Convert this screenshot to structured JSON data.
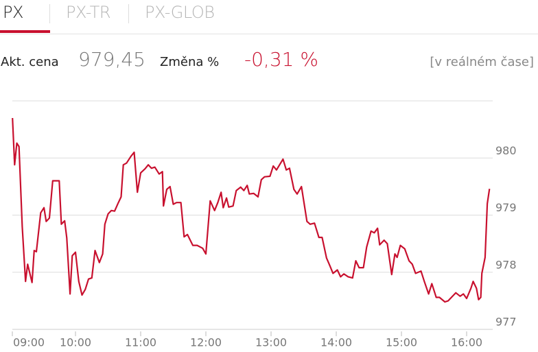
{
  "tabs": [
    "PX",
    "PX-TR",
    "PX-GLOB"
  ],
  "info": {
    "price_label": "Akt. cena",
    "price": "979,45",
    "change_label": "Změna %",
    "change": "-0,31 %",
    "realtime": "[v reálném čase]"
  },
  "chart_data": {
    "type": "line",
    "x": [
      "09:02",
      "09:04",
      "09:06",
      "09:08",
      "09:11",
      "09:14",
      "09:16",
      "09:20",
      "09:22",
      "09:24",
      "09:28",
      "09:31",
      "09:33",
      "09:36",
      "09:39",
      "09:45",
      "09:47",
      "09:50",
      "09:52",
      "09:55",
      "09:57",
      "10:00",
      "10:03",
      "10:06",
      "10:09",
      "10:12",
      "10:15",
      "10:18",
      "10:22",
      "10:25",
      "10:27",
      "10:30",
      "10:33",
      "10:36",
      "10:39",
      "10:42",
      "10:44",
      "10:47",
      "10:51",
      "10:54",
      "10:57",
      "11:00",
      "11:04",
      "11:07",
      "11:10",
      "11:13",
      "11:17",
      "11:20",
      "11:21",
      "11:24",
      "11:27",
      "11:30",
      "11:33",
      "11:37",
      "11:40",
      "11:43",
      "11:48",
      "11:52",
      "11:57",
      "12:00",
      "12:04",
      "12:08",
      "12:11",
      "12:14",
      "12:16",
      "12:19",
      "12:21",
      "12:25",
      "12:28",
      "12:32",
      "12:35",
      "12:38",
      "12:40",
      "12:44",
      "12:48",
      "12:51",
      "12:54",
      "12:59",
      "13:02",
      "13:05",
      "13:11",
      "13:14",
      "13:17",
      "13:21",
      "13:24",
      "13:28",
      "13:33",
      "13:36",
      "13:40",
      "13:44",
      "13:47",
      "13:51",
      "13:54",
      "13:57",
      "14:01",
      "14:04",
      "14:07",
      "14:11",
      "14:15",
      "14:18",
      "14:21",
      "14:25",
      "14:28",
      "14:32",
      "14:35",
      "14:38",
      "14:40",
      "14:44",
      "14:47",
      "14:51",
      "14:54",
      "14:56",
      "14:59",
      "15:03",
      "15:07",
      "15:10",
      "15:13",
      "15:18",
      "15:21",
      "15:25",
      "15:28",
      "15:32",
      "15:35",
      "15:40",
      "15:43",
      "15:47",
      "15:50",
      "15:54",
      "15:57",
      "16:00",
      "16:04",
      "16:06",
      "16:09",
      "16:11",
      "16:13",
      "16:14",
      "16:17",
      "16:19",
      "16:21"
    ],
    "series": [
      {
        "name": "PX",
        "color": "#c8102e",
        "values": [
          980.7,
          979.88,
          980.26,
          980.2,
          978.8,
          977.84,
          978.14,
          977.82,
          978.38,
          978.36,
          979.04,
          979.13,
          978.89,
          978.95,
          979.6,
          979.6,
          978.84,
          978.9,
          978.6,
          977.62,
          978.29,
          978.35,
          977.84,
          977.6,
          977.7,
          977.88,
          977.9,
          978.38,
          978.17,
          978.32,
          978.84,
          979.02,
          979.08,
          979.07,
          979.2,
          979.32,
          979.88,
          979.91,
          980.03,
          980.1,
          979.4,
          979.74,
          979.81,
          979.88,
          979.82,
          979.84,
          979.72,
          979.76,
          979.16,
          979.45,
          979.5,
          979.19,
          979.22,
          979.22,
          978.62,
          978.66,
          978.47,
          978.47,
          978.42,
          978.32,
          979.25,
          979.08,
          979.22,
          979.4,
          979.13,
          979.3,
          979.14,
          979.16,
          979.43,
          979.49,
          979.43,
          979.52,
          979.37,
          979.38,
          979.32,
          979.62,
          979.67,
          979.68,
          979.86,
          979.79,
          979.98,
          979.79,
          979.82,
          979.45,
          979.37,
          979.5,
          978.89,
          978.84,
          978.86,
          978.61,
          978.61,
          978.25,
          978.12,
          977.98,
          978.04,
          977.92,
          977.97,
          977.92,
          977.9,
          978.2,
          978.08,
          978.08,
          978.44,
          978.72,
          978.69,
          978.77,
          978.48,
          978.56,
          978.5,
          977.96,
          978.32,
          978.26,
          978.47,
          978.41,
          978.2,
          978.14,
          977.98,
          978.02,
          977.84,
          977.62,
          977.8,
          977.56,
          977.56,
          977.48,
          977.5,
          977.58,
          977.64,
          977.58,
          977.62,
          977.54,
          977.72,
          977.84,
          977.72,
          977.52,
          977.56,
          977.98,
          978.26,
          979.2,
          979.46
        ]
      }
    ],
    "xlim": [
      "09:00",
      "16:24"
    ],
    "xticks": [
      "09:00",
      "10:00",
      "11:00",
      "12:00",
      "13:00",
      "14:00",
      "15:00",
      "16:00"
    ],
    "ylim": [
      977,
      981
    ],
    "yticks": [
      977,
      978,
      979,
      980
    ],
    "grid": true
  }
}
